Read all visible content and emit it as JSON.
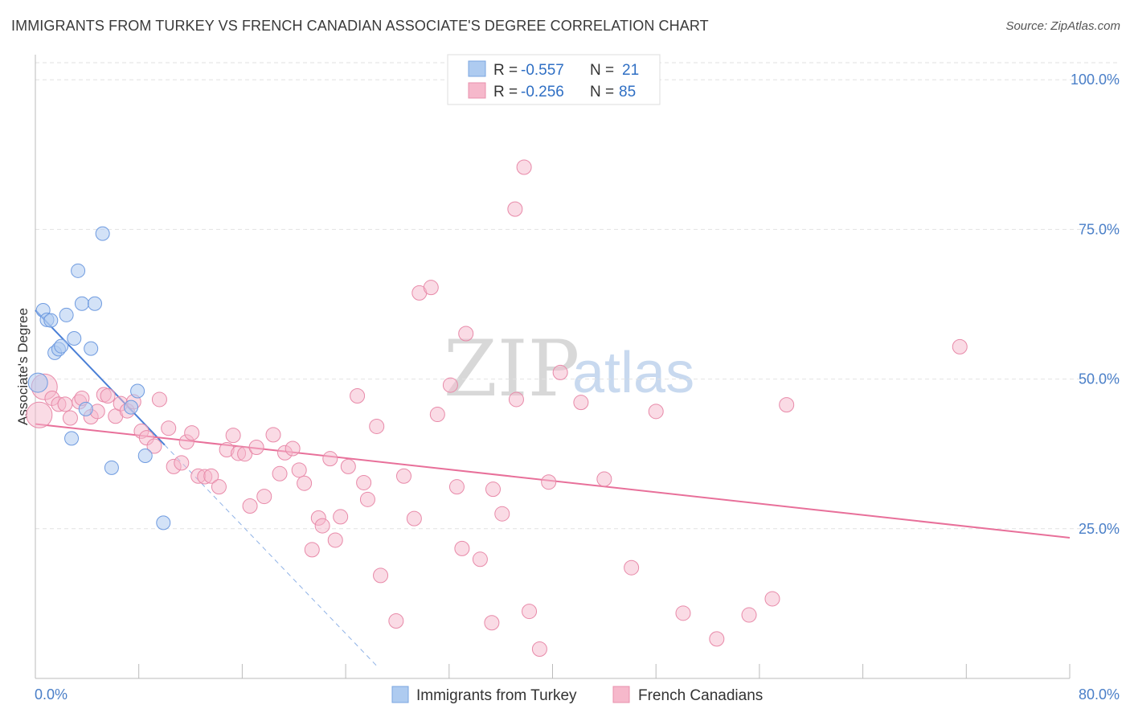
{
  "title": "IMMIGRANTS FROM TURKEY VS FRENCH CANADIAN ASSOCIATE'S DEGREE CORRELATION CHART",
  "source": "Source: ZipAtlas.com",
  "watermark": {
    "zip": "ZIP",
    "atlas": "atlas"
  },
  "legend_box": {
    "rows": [
      {
        "r_label": "R = ",
        "r_value": "-0.557",
        "n_label": "N = ",
        "n_value": "21",
        "color": "#aecbf0"
      },
      {
        "r_label": "R = ",
        "r_value": "-0.256",
        "n_label": "N = ",
        "n_value": "85",
        "color": "#f6b8cb"
      }
    ]
  },
  "bottom_legend": [
    "Immigrants from Turkey",
    "French Canadians"
  ],
  "chart_data": {
    "type": "scatter",
    "title": "IMMIGRANTS FROM TURKEY VS FRENCH CANADIAN ASSOCIATE'S DEGREE CORRELATION CHART",
    "xlabel": "",
    "ylabel": "Associate's Degree",
    "xlim": [
      0,
      80
    ],
    "ylim": [
      0,
      105
    ],
    "x_tick_labels": [
      "0.0%",
      "80.0%"
    ],
    "y_tick_labels": [
      "25.0%",
      "50.0%",
      "75.0%",
      "100.0%"
    ],
    "y_ticks": [
      25,
      50,
      75,
      100
    ],
    "grid": true,
    "legend_position": "top-center",
    "colors": {
      "turkey": "#4a7fd6",
      "french": "#e8709a",
      "turkey_fill": "#aecbf0",
      "french_fill": "#f6b8cb"
    },
    "series": [
      {
        "name": "Immigrants from Turkey",
        "R": -0.557,
        "N": 21,
        "trend": {
          "x0": 0.0,
          "y0": 61.5,
          "x1": 10.0,
          "y1": 39.0,
          "dash_to_x": 26.5
        },
        "points": [
          [
            0.2,
            49.4
          ],
          [
            0.6,
            61.5
          ],
          [
            0.9,
            59.9
          ],
          [
            1.2,
            59.8
          ],
          [
            1.5,
            54.4
          ],
          [
            1.8,
            55.0
          ],
          [
            2.0,
            55.5
          ],
          [
            2.4,
            60.7
          ],
          [
            2.8,
            40.1
          ],
          [
            3.0,
            56.8
          ],
          [
            3.3,
            68.1
          ],
          [
            3.6,
            62.6
          ],
          [
            3.9,
            45.0
          ],
          [
            4.3,
            55.1
          ],
          [
            4.6,
            62.6
          ],
          [
            5.2,
            74.3
          ],
          [
            5.9,
            35.2
          ],
          [
            7.4,
            45.3
          ],
          [
            7.9,
            48.0
          ],
          [
            8.5,
            37.2
          ],
          [
            9.9,
            26.0
          ]
        ]
      },
      {
        "name": "French Canadians",
        "R": -0.256,
        "N": 85,
        "trend": {
          "x0": 0.0,
          "y0": 42.5,
          "x1": 80.0,
          "y1": 23.5
        },
        "points": [
          [
            0.3,
            44.0
          ],
          [
            0.7,
            48.7
          ],
          [
            1.3,
            46.8
          ],
          [
            1.8,
            45.8
          ],
          [
            2.3,
            45.8
          ],
          [
            2.7,
            43.5
          ],
          [
            3.4,
            46.2
          ],
          [
            3.6,
            46.8
          ],
          [
            4.3,
            43.7
          ],
          [
            4.8,
            44.6
          ],
          [
            5.3,
            47.4
          ],
          [
            5.6,
            47.2
          ],
          [
            6.2,
            43.8
          ],
          [
            6.6,
            45.9
          ],
          [
            7.1,
            44.7
          ],
          [
            7.6,
            46.2
          ],
          [
            8.2,
            41.3
          ],
          [
            8.6,
            40.2
          ],
          [
            9.2,
            38.8
          ],
          [
            9.6,
            46.6
          ],
          [
            10.3,
            41.8
          ],
          [
            10.7,
            35.4
          ],
          [
            11.3,
            36.0
          ],
          [
            11.7,
            39.5
          ],
          [
            12.1,
            41.0
          ],
          [
            12.6,
            33.8
          ],
          [
            13.1,
            33.7
          ],
          [
            13.6,
            33.8
          ],
          [
            14.2,
            32.0
          ],
          [
            14.8,
            38.2
          ],
          [
            15.3,
            40.6
          ],
          [
            15.7,
            37.6
          ],
          [
            16.2,
            37.5
          ],
          [
            16.6,
            28.8
          ],
          [
            17.1,
            38.6
          ],
          [
            17.7,
            30.4
          ],
          [
            18.4,
            40.7
          ],
          [
            18.9,
            34.2
          ],
          [
            19.3,
            37.7
          ],
          [
            19.9,
            38.4
          ],
          [
            20.4,
            34.8
          ],
          [
            20.8,
            32.6
          ],
          [
            21.4,
            21.5
          ],
          [
            21.9,
            26.8
          ],
          [
            22.2,
            25.5
          ],
          [
            22.8,
            36.7
          ],
          [
            23.2,
            23.1
          ],
          [
            23.6,
            27.0
          ],
          [
            24.2,
            35.4
          ],
          [
            24.9,
            47.2
          ],
          [
            25.4,
            32.7
          ],
          [
            25.7,
            29.9
          ],
          [
            26.4,
            42.1
          ],
          [
            26.7,
            17.2
          ],
          [
            27.9,
            9.6
          ],
          [
            28.5,
            33.8
          ],
          [
            29.3,
            26.7
          ],
          [
            29.7,
            64.4
          ],
          [
            30.6,
            65.3
          ],
          [
            31.1,
            44.1
          ],
          [
            32.1,
            49.0
          ],
          [
            32.6,
            32.0
          ],
          [
            33.0,
            21.7
          ],
          [
            33.3,
            57.6
          ],
          [
            34.4,
            19.9
          ],
          [
            35.3,
            9.3
          ],
          [
            35.4,
            31.6
          ],
          [
            36.1,
            27.5
          ],
          [
            37.2,
            46.6
          ],
          [
            37.1,
            78.4
          ],
          [
            37.8,
            85.4
          ],
          [
            38.2,
            11.2
          ],
          [
            39.0,
            4.9
          ],
          [
            39.7,
            32.8
          ],
          [
            40.6,
            51.1
          ],
          [
            42.2,
            46.1
          ],
          [
            44.0,
            33.3
          ],
          [
            46.1,
            18.5
          ],
          [
            48.0,
            44.6
          ],
          [
            50.1,
            10.9
          ],
          [
            52.7,
            6.6
          ],
          [
            55.2,
            10.6
          ],
          [
            57.0,
            13.3
          ],
          [
            58.1,
            45.7
          ],
          [
            71.5,
            55.4
          ]
        ]
      }
    ]
  }
}
